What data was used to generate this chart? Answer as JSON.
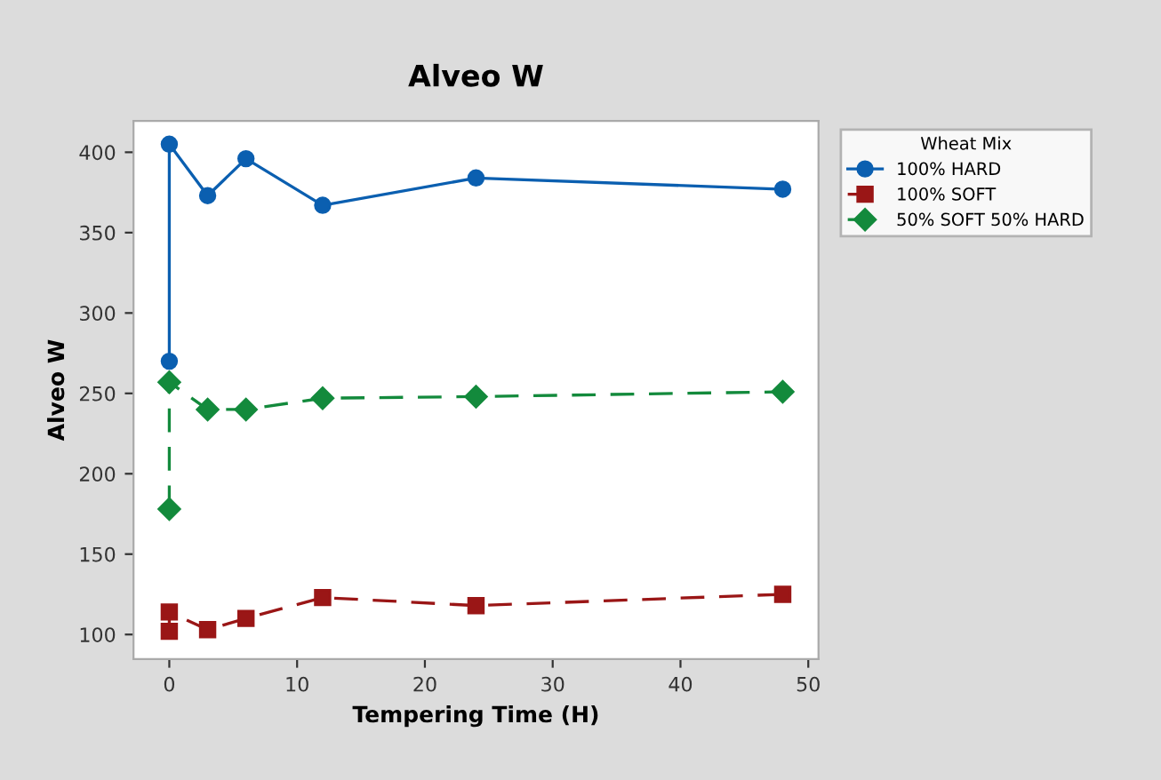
{
  "chart_data": {
    "type": "line",
    "title": "Alveo W",
    "xlabel": "Tempering Time (H)",
    "ylabel": "Alveo W",
    "legend_title": "Wheat Mix",
    "legend": "top right",
    "grid": false,
    "xlim": [
      -2.8,
      50.8
    ],
    "xticks": [
      0,
      10,
      20,
      30,
      40,
      50
    ],
    "ylim": [
      84.7,
      419.5
    ],
    "yticks": [
      100,
      150,
      200,
      250,
      300,
      350,
      400
    ],
    "series": [
      {
        "name": "100% HARD",
        "color": "#0b5fb0",
        "marker": "circle",
        "line_style": "solid",
        "x": [
          0,
          0,
          3,
          6,
          12,
          24,
          48
        ],
        "values": [
          270,
          405,
          373,
          396,
          367,
          384,
          377
        ]
      },
      {
        "name": "100% SOFT",
        "color": "#9a1616",
        "marker": "square",
        "line_style": "dashed",
        "x": [
          0,
          0,
          3,
          6,
          12,
          24,
          48
        ],
        "values": [
          102,
          114,
          103,
          110,
          123,
          118,
          125
        ]
      },
      {
        "name": "50% SOFT 50% HARD",
        "color": "#138a3c",
        "marker": "diamond",
        "line_style": "dashed",
        "x": [
          0,
          0,
          3,
          6,
          12,
          24,
          48
        ],
        "values": [
          178,
          257,
          240,
          240,
          247,
          248,
          251
        ]
      }
    ]
  }
}
